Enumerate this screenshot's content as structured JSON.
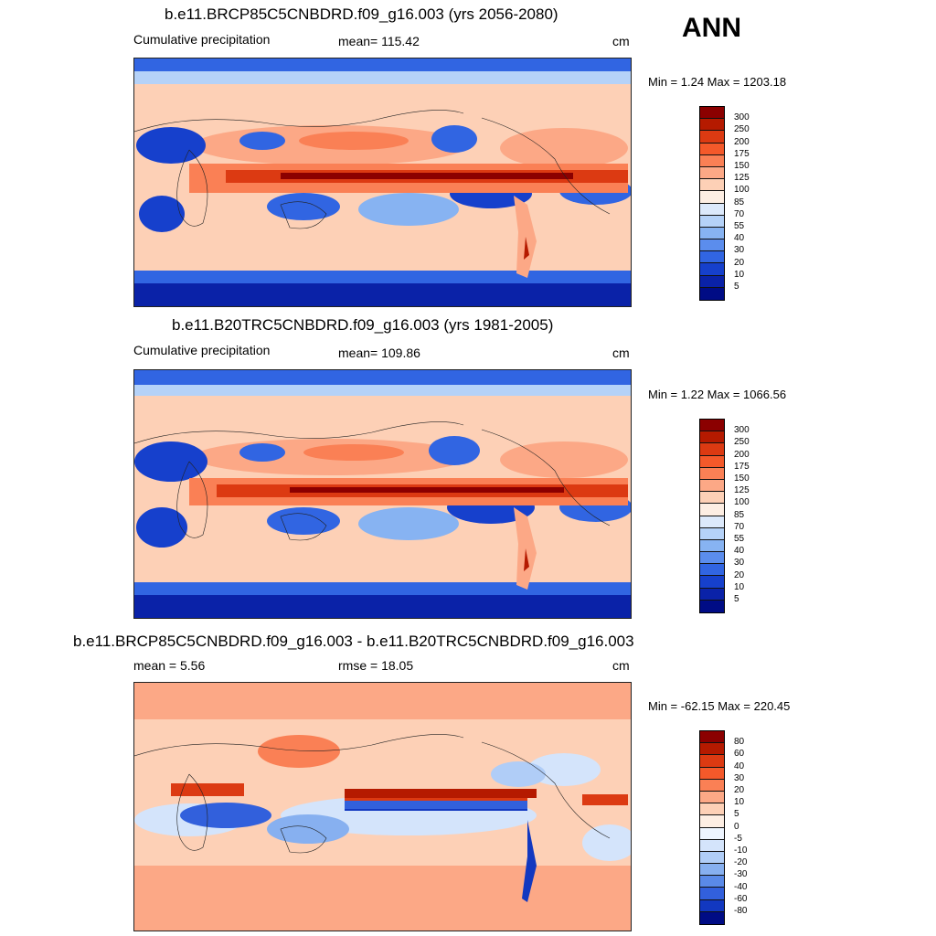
{
  "season": "ANN",
  "panels": [
    {
      "title": "b.e11.BRCP85C5CNBDRD.f09_g16.003 (yrs 2056-2080)",
      "left_label": "Cumulative precipitation",
      "center_label": "mean= 115.42",
      "units": "cm",
      "minmax": "Min =   1.24 Max = 1203.18",
      "palette": "abs",
      "colorbar_labels": [
        "300",
        "250",
        "200",
        "175",
        "150",
        "125",
        "100",
        "85",
        "70",
        "55",
        "40",
        "30",
        "20",
        "10",
        "5"
      ]
    },
    {
      "title": "b.e11.B20TRC5CNBDRD.f09_g16.003 (yrs 1981-2005)",
      "left_label": "Cumulative precipitation",
      "center_label": "mean= 109.86",
      "units": "cm",
      "minmax": "Min =   1.22 Max = 1066.56",
      "palette": "abs",
      "colorbar_labels": [
        "300",
        "250",
        "200",
        "175",
        "150",
        "125",
        "100",
        "85",
        "70",
        "55",
        "40",
        "30",
        "20",
        "10",
        "5"
      ]
    },
    {
      "title": "b.e11.BRCP85C5CNBDRD.f09_g16.003 - b.e11.B20TRC5CNBDRD.f09_g16.003",
      "left_label": "mean =   5.56",
      "center_label": "rmse =  18.05",
      "units": "cm",
      "minmax": "Min = -62.15 Max = 220.45",
      "palette": "diff",
      "colorbar_labels": [
        "80",
        "60",
        "40",
        "30",
        "20",
        "10",
        "5",
        "0",
        "-5",
        "-10",
        "-20",
        "-30",
        "-40",
        "-60",
        "-80"
      ]
    }
  ],
  "colors": {
    "abs": [
      "#8b0000",
      "#b51a00",
      "#dc3a12",
      "#f4592a",
      "#fa8055",
      "#fca886",
      "#fdd0b6",
      "#fdeee3",
      "#dce9fb",
      "#b5d2f8",
      "#87b3f2",
      "#5b8ded",
      "#3165e2",
      "#1640cc",
      "#0a22a8",
      "#000c85"
    ],
    "diff": [
      "#8b0000",
      "#b51a00",
      "#dc3a12",
      "#f4592a",
      "#fa8055",
      "#fca886",
      "#fdd0b6",
      "#fdeee3",
      "#eef5ff",
      "#d4e4fb",
      "#b0cdf7",
      "#87b0f0",
      "#5a8ae8",
      "#3260dc",
      "#1238c0",
      "#000c85"
    ]
  }
}
